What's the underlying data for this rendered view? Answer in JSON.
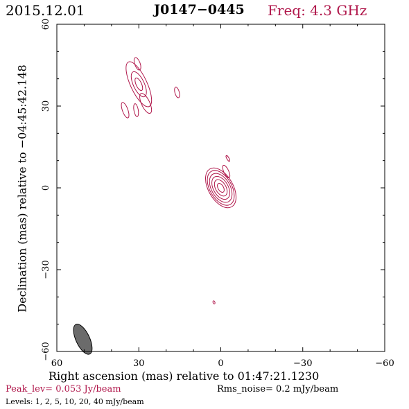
{
  "header": {
    "date": "2015.12.01",
    "source": "J0147−0445",
    "frequency": "Freq: 4.3 GHz"
  },
  "footer": {
    "peak_level": "Peak_lev=  0.053 Jy/beam",
    "rms_noise": "Rms_noise=  0.2 mJy/beam",
    "levels": "Levels:   1,   2,   5,  10,  20,  40 mJy/beam"
  },
  "colors": {
    "contour": "#b0174b",
    "beam": "#6b6b6b",
    "axis": "#000000"
  },
  "chart_data": {
    "type": "contour",
    "xlabel": "Right ascension (mas) relative to 01:47:21.1230",
    "ylabel": "Declination (mas) relative to −04:45:42.148",
    "xlim": [
      60,
      -60
    ],
    "ylim": [
      -60,
      60
    ],
    "x_ticks": [
      60,
      30,
      0,
      -30,
      -60
    ],
    "y_ticks": [
      60,
      30,
      0,
      -30,
      -60
    ],
    "x_tick_labels": [
      "60",
      "30",
      "0",
      "−30",
      "−60"
    ],
    "y_tick_labels": [
      "60",
      "30",
      "0",
      "−30",
      "−60"
    ],
    "contour_levels_mJy": [
      1,
      2,
      5,
      10,
      20,
      40
    ],
    "components": [
      {
        "name": "core",
        "x": 0,
        "y": 0,
        "pa_deg": -30,
        "contours": [
          [
            4.5,
            8.0
          ],
          [
            4.0,
            7.0
          ],
          [
            3.4,
            5.8
          ],
          [
            2.7,
            4.6
          ],
          [
            1.9,
            3.3
          ],
          [
            1.0,
            1.8
          ]
        ]
      },
      {
        "name": "core-knot",
        "x": -2.0,
        "y": 6.0,
        "pa_deg": -25,
        "contours": [
          [
            0.9,
            2.5
          ]
        ]
      },
      {
        "name": "core-knot-2",
        "x": -2.6,
        "y": 10.8,
        "pa_deg": -30,
        "contours": [
          [
            0.4,
            1.2
          ]
        ]
      },
      {
        "name": "north-component",
        "x": 30.0,
        "y": 38.0,
        "pa_deg": -25,
        "contours": [
          [
            3.0,
            9.0
          ],
          [
            2.0,
            5.0
          ],
          [
            1.0,
            2.5
          ]
        ]
      },
      {
        "name": "north-tail",
        "x": 27.5,
        "y": 31.0,
        "pa_deg": -25,
        "contours": [
          [
            1.5,
            4.0
          ]
        ]
      },
      {
        "name": "north-knot-1",
        "x": 35.0,
        "y": 28.5,
        "pa_deg": -20,
        "contours": [
          [
            1.0,
            3.0
          ]
        ]
      },
      {
        "name": "north-knot-2",
        "x": 31.0,
        "y": 28.5,
        "pa_deg": -10,
        "contours": [
          [
            0.8,
            2.4
          ]
        ]
      },
      {
        "name": "north-knot-3",
        "x": 30.5,
        "y": 45.5,
        "pa_deg": -20,
        "contours": [
          [
            1.0,
            2.4
          ]
        ]
      },
      {
        "name": "north-knot-4",
        "x": 16.0,
        "y": 35.0,
        "pa_deg": -15,
        "contours": [
          [
            0.8,
            2.0
          ]
        ]
      },
      {
        "name": "south-knot",
        "x": 2.5,
        "y": -42.0,
        "pa_deg": -20,
        "contours": [
          [
            0.35,
            0.6
          ]
        ]
      }
    ],
    "beam": {
      "x": 50.5,
      "y": -55.5,
      "major_mas": 6.0,
      "minor_mas": 2.5,
      "pa_deg": -25
    }
  }
}
